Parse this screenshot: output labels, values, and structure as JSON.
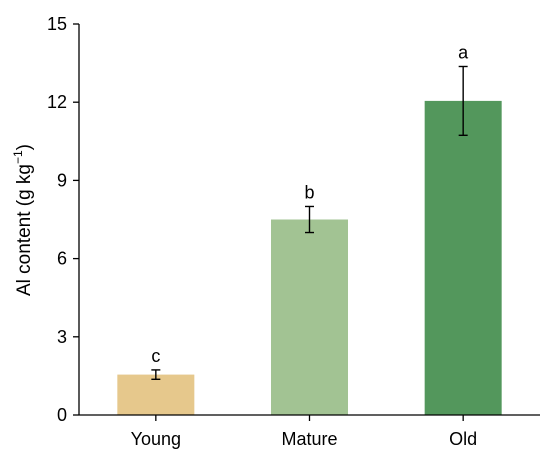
{
  "chart_data": {
    "type": "bar",
    "categories": [
      "Young",
      "Mature",
      "Old"
    ],
    "values": [
      1.55,
      7.5,
      12.05
    ],
    "errors": [
      0.18,
      0.5,
      1.32
    ],
    "significance": [
      "c",
      "b",
      "a"
    ],
    "colors": [
      "#e6c88c",
      "#a2c393",
      "#53975c"
    ],
    "ylabel_main": "Al content (g kg",
    "ylabel_sup": "−1",
    "ylabel_close": ")",
    "ylim": [
      0,
      15
    ],
    "yticks": [
      0,
      3,
      6,
      9,
      12,
      15
    ],
    "grid": false
  }
}
